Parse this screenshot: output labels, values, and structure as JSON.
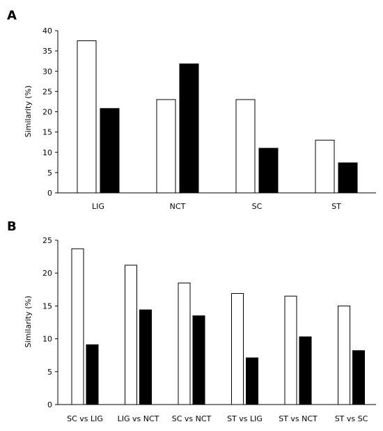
{
  "chart_data": [
    {
      "panel": "A",
      "type": "bar",
      "categories": [
        "LIG",
        "NCT",
        "SC",
        "ST"
      ],
      "series": [
        {
          "values": [
            37.5,
            23.0,
            23.0,
            13.0
          ],
          "color": "#ffffff"
        },
        {
          "values": [
            20.8,
            31.8,
            11.0,
            7.4
          ],
          "color": "#000000"
        }
      ],
      "ylabel": "Similarity (%)",
      "xlabel": "",
      "title": "",
      "ylim": [
        0,
        40
      ],
      "yticks": [
        0,
        5,
        10,
        15,
        20,
        25,
        30,
        35,
        40
      ],
      "grid": false,
      "legend": "none"
    },
    {
      "panel": "B",
      "type": "bar",
      "categories": [
        "SC vs LIG",
        "LIG vs NCT",
        "SC vs NCT",
        "ST  vs  LIG",
        "ST vs NCT",
        "ST vs  SC"
      ],
      "series": [
        {
          "values": [
            23.7,
            21.2,
            18.5,
            16.9,
            16.5,
            15.0
          ],
          "color": "#ffffff"
        },
        {
          "values": [
            9.1,
            14.4,
            13.5,
            7.1,
            10.3,
            8.2
          ],
          "color": "#000000"
        }
      ],
      "ylabel": "Similarity (%)",
      "xlabel": "",
      "title": "",
      "ylim": [
        0,
        25
      ],
      "yticks": [
        0,
        5,
        10,
        15,
        20,
        25
      ],
      "grid": false,
      "legend": "none"
    }
  ]
}
